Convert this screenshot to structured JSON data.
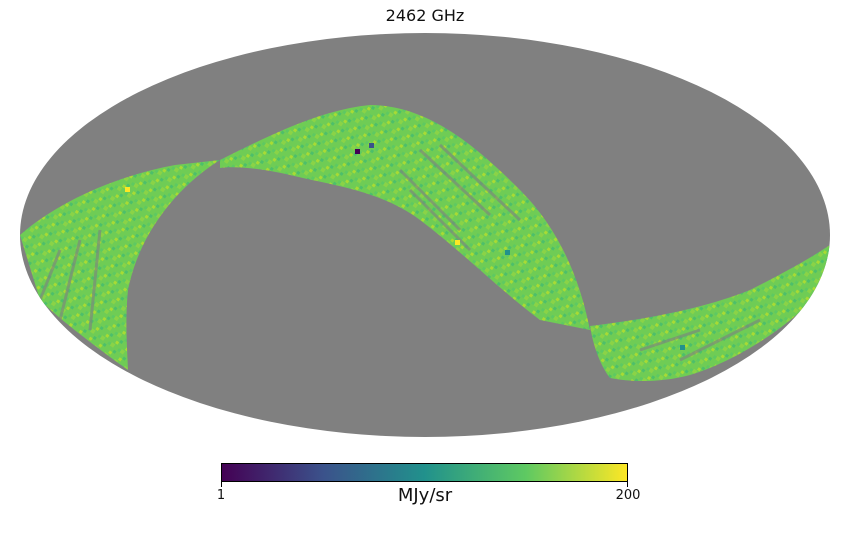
{
  "title": "2462 GHz",
  "colorbar": {
    "min_label": "1",
    "max_label": "200",
    "unit": "MJy/sr",
    "colormap": "viridis",
    "stops": [
      "#440154",
      "#3b528b",
      "#21918c",
      "#5ec962",
      "#fde725"
    ]
  },
  "map": {
    "projection": "mollweide",
    "background_color": "#808080",
    "band_fill_color": "#72cf4f",
    "description_colors": [
      "#5ec962",
      "#7ad151",
      "#4ac16d",
      "#a2da37",
      "#2eb37c",
      "#1fa187",
      "#bddf26"
    ]
  }
}
